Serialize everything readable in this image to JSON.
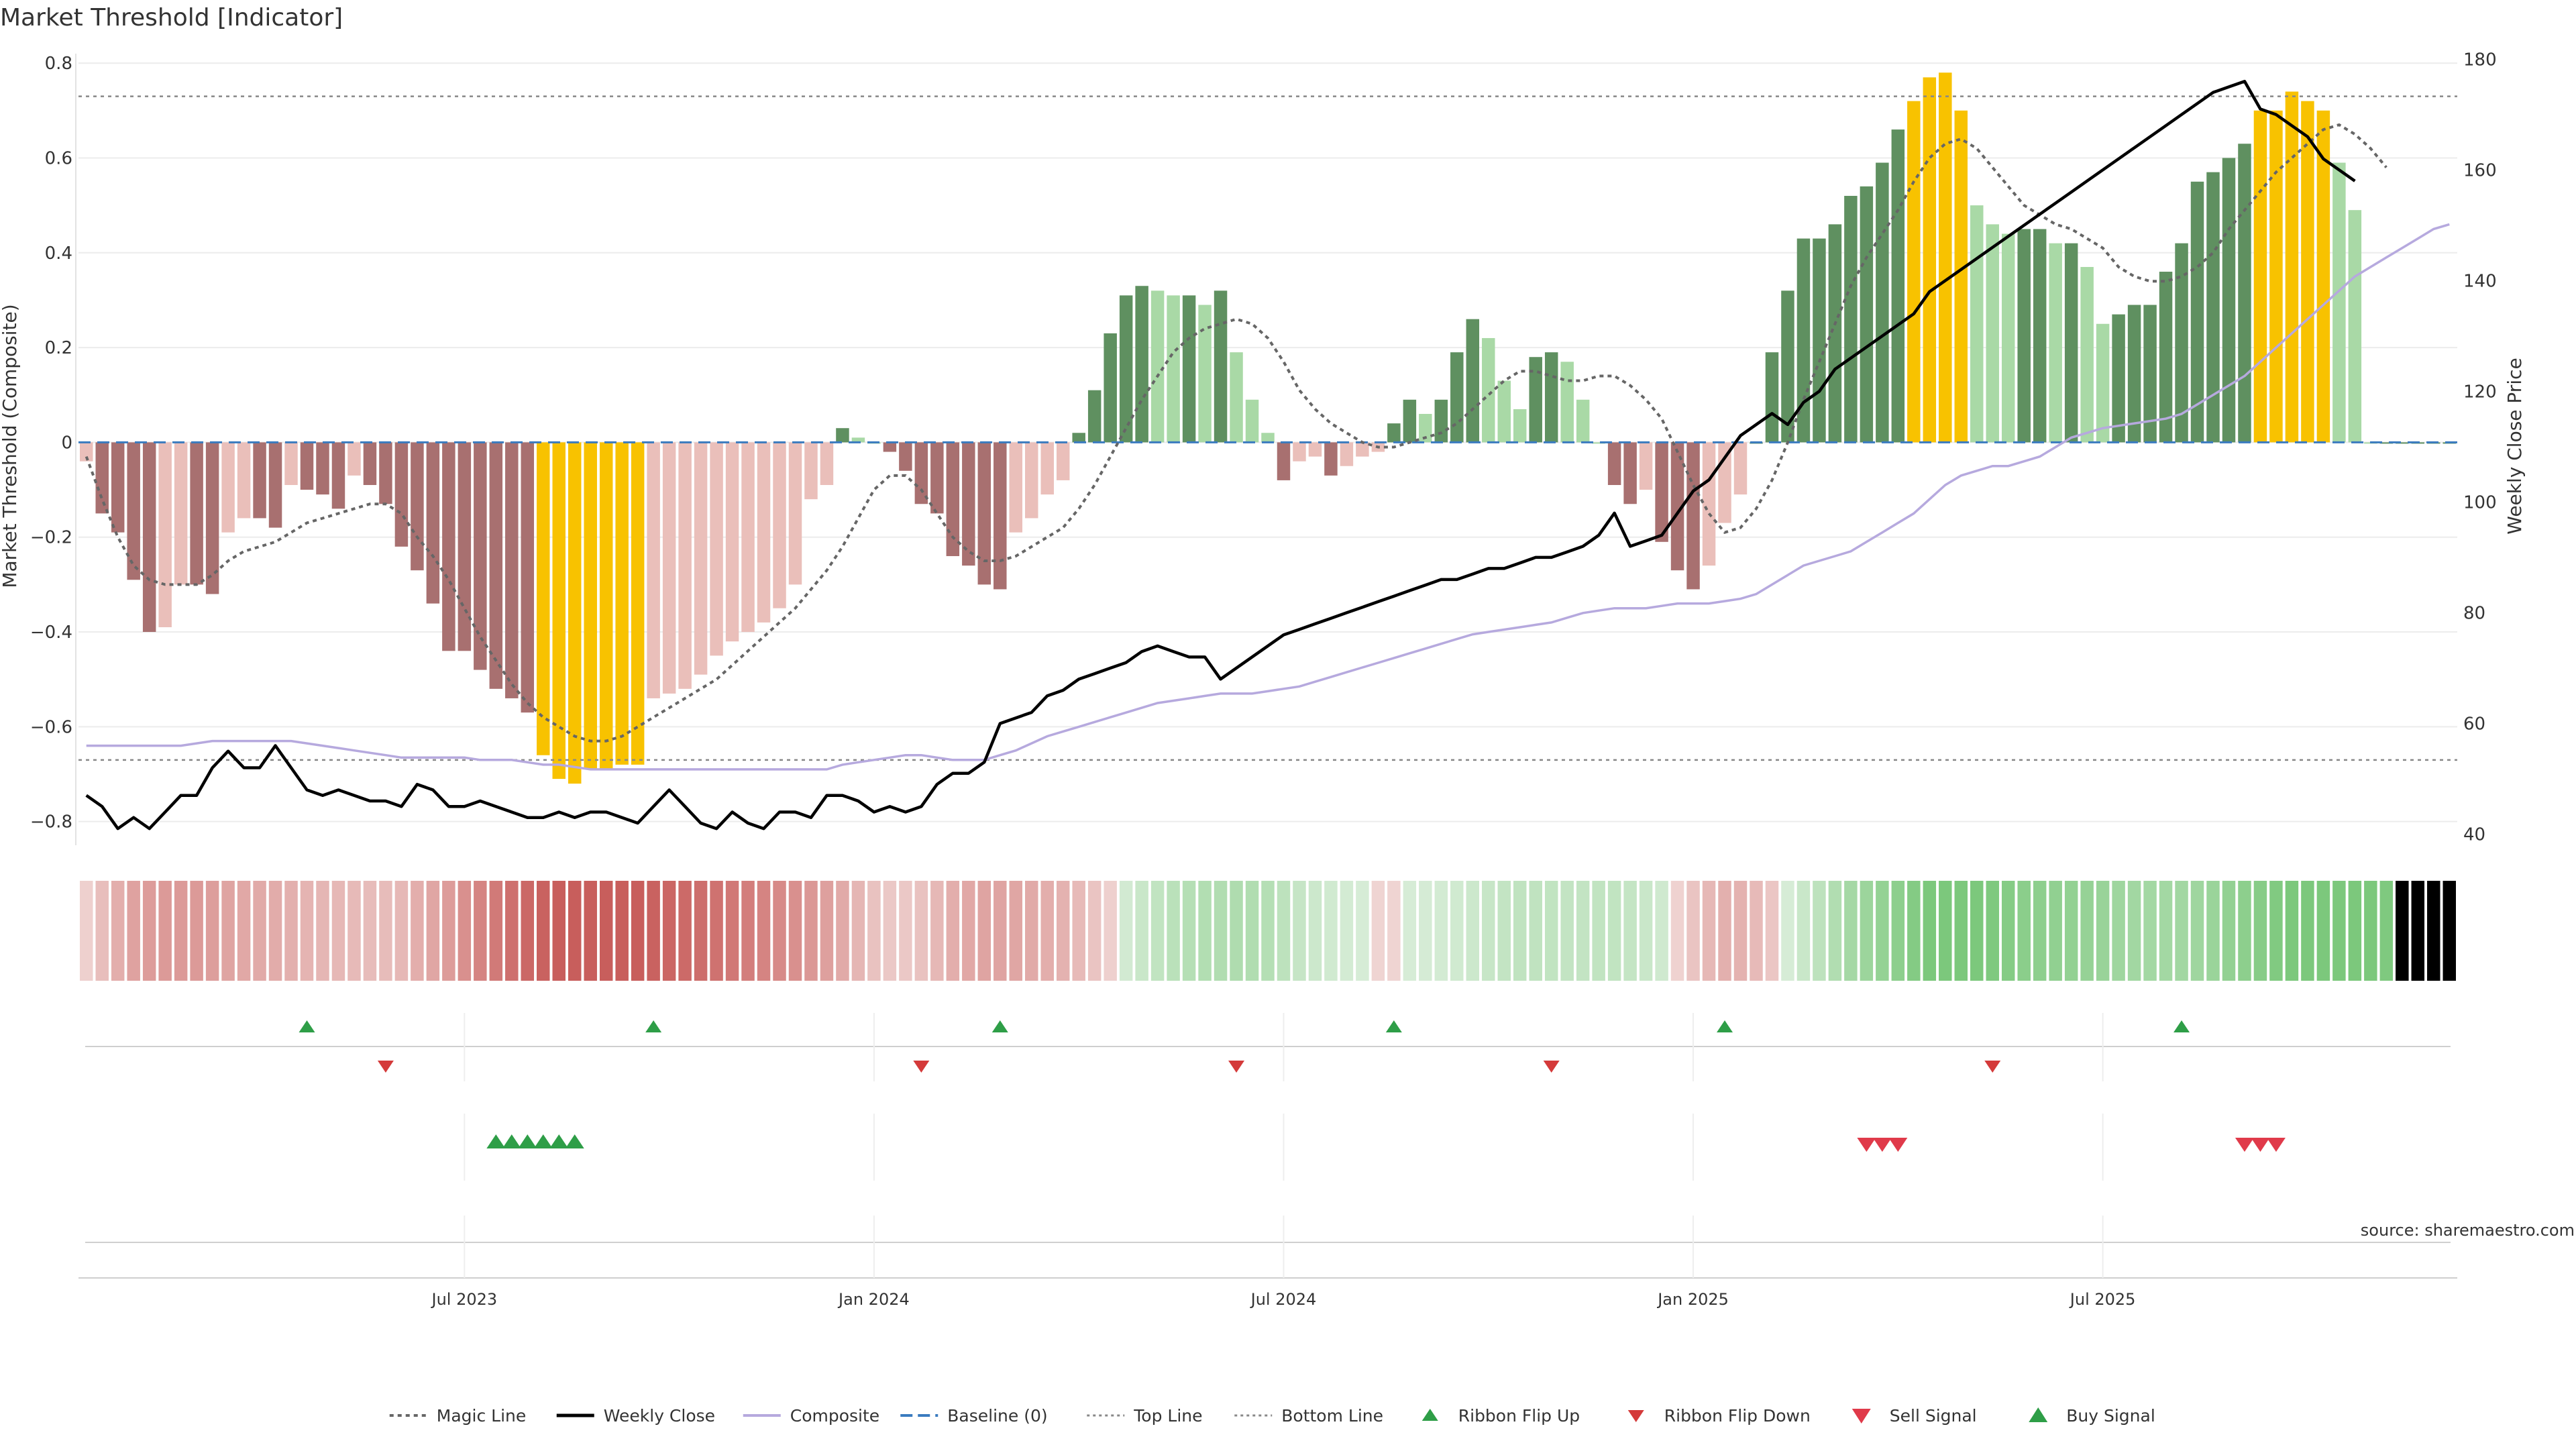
{
  "chart_data": {
    "type": "bar",
    "title": "Market Threshold [Indicator]",
    "source": "source: sharemaestro.com",
    "ylabel_left": "Market Threshold (Composite)",
    "ylabel_right": "Weekly Close Price",
    "ylim_left": [
      -0.85,
      0.82
    ],
    "ylim_right": [
      38,
      181
    ],
    "yticks_left": [
      "0.8",
      "0.6",
      "0.4",
      "0.2",
      "0",
      "−0.2",
      "−0.4",
      "−0.6",
      "−0.8"
    ],
    "yticks_left_values": [
      0.8,
      0.6,
      0.4,
      0.2,
      0,
      -0.2,
      -0.4,
      -0.6,
      -0.8
    ],
    "yticks_right": [
      "180",
      "160",
      "140",
      "120",
      "100",
      "80",
      "60",
      "40"
    ],
    "yticks_right_values": [
      180,
      160,
      140,
      120,
      100,
      80,
      60,
      40
    ],
    "xticks": [
      {
        "label": "Jul 2023",
        "week": 24.5
      },
      {
        "label": "Jan 2024",
        "week": 50.5
      },
      {
        "label": "Jul 2024",
        "week": 76.5
      },
      {
        "label": "Jan 2025",
        "week": 102.5
      },
      {
        "label": "Jul 2025",
        "week": 128.5
      }
    ],
    "top_line": 0.73,
    "bottom_line": -0.67,
    "baseline": 0,
    "composite": [
      -0.64,
      -0.64,
      -0.64,
      -0.64,
      -0.64,
      -0.64,
      -0.64,
      -0.635,
      -0.63,
      -0.63,
      -0.63,
      -0.63,
      -0.63,
      -0.63,
      -0.635,
      -0.64,
      -0.645,
      -0.65,
      -0.655,
      -0.66,
      -0.665,
      -0.665,
      -0.665,
      -0.665,
      -0.665,
      -0.67,
      -0.67,
      -0.67,
      -0.675,
      -0.68,
      -0.68,
      -0.685,
      -0.69,
      -0.69,
      -0.69,
      -0.69,
      -0.69,
      -0.69,
      -0.69,
      -0.69,
      -0.69,
      -0.69,
      -0.69,
      -0.69,
      -0.69,
      -0.69,
      -0.69,
      -0.69,
      -0.68,
      -0.675,
      -0.67,
      -0.665,
      -0.66,
      -0.66,
      -0.665,
      -0.67,
      -0.67,
      -0.67,
      -0.66,
      -0.65,
      -0.635,
      -0.62,
      -0.61,
      -0.6,
      -0.59,
      -0.58,
      -0.57,
      -0.56,
      -0.55,
      -0.545,
      -0.54,
      -0.535,
      -0.53,
      -0.53,
      -0.53,
      -0.525,
      -0.52,
      -0.515,
      -0.505,
      -0.495,
      -0.485,
      -0.475,
      -0.465,
      -0.455,
      -0.445,
      -0.435,
      -0.425,
      -0.415,
      -0.405,
      -0.4,
      -0.395,
      -0.39,
      -0.385,
      -0.38,
      -0.37,
      -0.36,
      -0.355,
      -0.35,
      -0.35,
      -0.35,
      -0.345,
      -0.34,
      -0.34,
      -0.34,
      -0.335,
      -0.33,
      -0.32,
      -0.3,
      -0.28,
      -0.26,
      -0.25,
      -0.24,
      -0.23,
      -0.21,
      -0.19,
      -0.17,
      -0.15,
      -0.12,
      -0.09,
      -0.07,
      -0.06,
      -0.05,
      -0.05,
      -0.04,
      -0.03,
      -0.01,
      0.01,
      0.02,
      0.03,
      0.035,
      0.04,
      0.045,
      0.05,
      0.06,
      0.08,
      0.1,
      0.12,
      0.14,
      0.17,
      0.2,
      0.23,
      0.26,
      0.29,
      0.32,
      0.35,
      0.37,
      0.39,
      0.41,
      0.43,
      0.45,
      0.46
    ],
    "magic_line": [
      -0.03,
      -0.12,
      -0.2,
      -0.26,
      -0.29,
      -0.3,
      -0.3,
      -0.3,
      -0.28,
      -0.25,
      -0.23,
      -0.22,
      -0.21,
      -0.19,
      -0.17,
      -0.16,
      -0.15,
      -0.14,
      -0.13,
      -0.13,
      -0.15,
      -0.2,
      -0.24,
      -0.29,
      -0.35,
      -0.41,
      -0.46,
      -0.51,
      -0.55,
      -0.58,
      -0.6,
      -0.62,
      -0.63,
      -0.63,
      -0.62,
      -0.6,
      -0.58,
      -0.56,
      -0.54,
      -0.52,
      -0.5,
      -0.47,
      -0.44,
      -0.41,
      -0.38,
      -0.35,
      -0.31,
      -0.27,
      -0.22,
      -0.16,
      -0.1,
      -0.07,
      -0.07,
      -0.1,
      -0.15,
      -0.2,
      -0.23,
      -0.25,
      -0.25,
      -0.24,
      -0.22,
      -0.2,
      -0.18,
      -0.14,
      -0.09,
      -0.03,
      0.03,
      0.09,
      0.14,
      0.19,
      0.22,
      0.24,
      0.25,
      0.26,
      0.25,
      0.22,
      0.17,
      0.11,
      0.07,
      0.04,
      0.02,
      0.0,
      -0.01,
      -0.01,
      0.0,
      0.01,
      0.02,
      0.04,
      0.07,
      0.1,
      0.13,
      0.15,
      0.15,
      0.14,
      0.13,
      0.13,
      0.14,
      0.14,
      0.12,
      0.09,
      0.05,
      -0.02,
      -0.09,
      -0.15,
      -0.19,
      -0.18,
      -0.14,
      -0.08,
      0.0,
      0.09,
      0.17,
      0.25,
      0.33,
      0.39,
      0.44,
      0.49,
      0.55,
      0.6,
      0.63,
      0.64,
      0.62,
      0.58,
      0.54,
      0.5,
      0.48,
      0.46,
      0.45,
      0.43,
      0.41,
      0.37,
      0.35,
      0.34,
      0.34,
      0.35,
      0.37,
      0.4,
      0.45,
      0.49,
      0.53,
      0.57,
      0.6,
      0.63,
      0.66,
      0.67,
      0.65,
      0.62,
      0.58
    ],
    "weekly_close": [
      47,
      45,
      41,
      43,
      41,
      44,
      47,
      47,
      52,
      55,
      52,
      52,
      56,
      52,
      48,
      47,
      48,
      47,
      46,
      46,
      45,
      49,
      48,
      45,
      45,
      46,
      45,
      44,
      43,
      43,
      44,
      43,
      44,
      44,
      43,
      42,
      45,
      48,
      45,
      42,
      41,
      44,
      42,
      41,
      44,
      44,
      43,
      47,
      47,
      46,
      44,
      45,
      44,
      45,
      49,
      51,
      51,
      53,
      60,
      61,
      62,
      65,
      66,
      68,
      69,
      70,
      71,
      73,
      74,
      73,
      72,
      72,
      68,
      70,
      72,
      74,
      76,
      77,
      78,
      79,
      80,
      81,
      82,
      83,
      84,
      85,
      86,
      86,
      87,
      88,
      88,
      89,
      90,
      90,
      91,
      92,
      94,
      98,
      92,
      93,
      94,
      98,
      102,
      104,
      108,
      112,
      114,
      116,
      114,
      118,
      120,
      124,
      126,
      128,
      130,
      132,
      134,
      138,
      140,
      142,
      144,
      146,
      148,
      150,
      152,
      154,
      156,
      158,
      160,
      162,
      164,
      166,
      168,
      170,
      172,
      174,
      175,
      176,
      171,
      170,
      168,
      166,
      162,
      160,
      158
    ],
    "series": [
      {
        "name": "Magic Line",
        "color": "#666666"
      },
      {
        "name": "Weekly Close",
        "color": "#000000"
      },
      {
        "name": "Composite",
        "color": "#b6a9de"
      },
      {
        "name": "Baseline (0)",
        "color": "#3a7bbf"
      },
      {
        "name": "Top Line",
        "color": "#888888"
      },
      {
        "name": "Bottom Line",
        "color": "#888888"
      },
      {
        "name": "Ribbon Flip Up",
        "color": "#2e9e47"
      },
      {
        "name": "Ribbon Flip Down",
        "color": "#d43a3a"
      },
      {
        "name": "Sell Signal",
        "color": "#e03a4a"
      },
      {
        "name": "Buy Signal",
        "color": "#2e9e47"
      }
    ],
    "ribbon_flip_up_weeks": [
      14,
      36,
      58,
      83,
      104,
      133
    ],
    "ribbon_flip_down_weeks": [
      19,
      53,
      73,
      93,
      121
    ],
    "buy_signal_weeks": [
      26,
      27,
      28,
      29,
      30,
      31
    ],
    "sell_signal_weeks": [
      113,
      114,
      115,
      137,
      138,
      139
    ],
    "legend_position": "bottom-center",
    "grid": true
  }
}
